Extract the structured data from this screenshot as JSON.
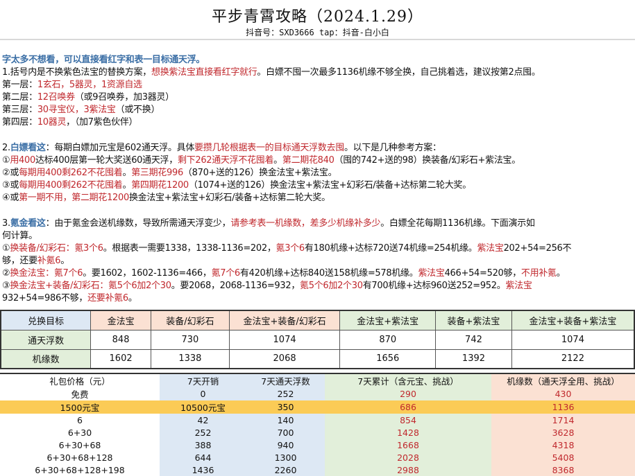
{
  "header": {
    "title": "平步青霄攻略（2024.1.29）",
    "subtitle": "抖音号：SXD3666   tap：抖音-白小白"
  },
  "colors": {
    "red": "#c0282d",
    "blue_heading": "#3a6ea5",
    "highlight": "#fbcb56"
  },
  "lines": [
    [
      {
        "t": "字太多不想看，可以直接看红字和表一目标通天浮。",
        "c": "b"
      }
    ],
    [
      {
        "t": "1.括号内是不换紫色法宝的替换方案，",
        "c": "k"
      },
      {
        "t": "想换紫法宝直接看红字就行",
        "c": "r"
      },
      {
        "t": "。白嫖不囤一次最多1136机缘不够全换，自己挑着选，建议按第2点囤。",
        "c": "k"
      }
    ],
    [
      {
        "t": "第一层：",
        "c": "k"
      },
      {
        "t": "1玄石，5器灵，1资源自选",
        "c": "r"
      }
    ],
    [
      {
        "t": "第二层：",
        "c": "k"
      },
      {
        "t": "12召唤券",
        "c": "r"
      },
      {
        "t": "（或9召唤券，加3器灵）",
        "c": "k"
      }
    ],
    [
      {
        "t": "第三层：",
        "c": "k"
      },
      {
        "t": "30寻宝仪，3紫法宝",
        "c": "r"
      },
      {
        "t": "（或不换）",
        "c": "k"
      }
    ],
    [
      {
        "t": "第四层：",
        "c": "k"
      },
      {
        "t": "10器灵",
        "c": "r"
      },
      {
        "t": "，（加7紫色伙伴）",
        "c": "k"
      }
    ],
    [],
    [
      {
        "t": "2.",
        "c": "k"
      },
      {
        "t": "白嫖看这",
        "c": "b"
      },
      {
        "t": "：每期白嫖加元宝是602通天浮。具体",
        "c": "k"
      },
      {
        "t": "要攒几轮根据表一的目标通天浮数去囤",
        "c": "r"
      },
      {
        "t": "。以下是几种参考方案：",
        "c": "k"
      }
    ],
    [
      {
        "t": "①",
        "c": "k"
      },
      {
        "t": "用400",
        "c": "r"
      },
      {
        "t": "达标400层第一轮大奖送60通天浮，",
        "c": "k"
      },
      {
        "t": "剩下262通天浮不花囤着",
        "c": "r"
      },
      {
        "t": "。",
        "c": "k"
      },
      {
        "t": "第二期花840",
        "c": "r"
      },
      {
        "t": "（囤的742+送的98）换装备/幻彩石+紫法宝。",
        "c": "k"
      }
    ],
    [
      {
        "t": "②或",
        "c": "k"
      },
      {
        "t": "每期用400剩262不花囤着",
        "c": "r"
      },
      {
        "t": "。",
        "c": "k"
      },
      {
        "t": "第三期花996",
        "c": "r"
      },
      {
        "t": "（870+送的126）换金法宝+紫法宝。",
        "c": "k"
      }
    ],
    [
      {
        "t": "③或",
        "c": "k"
      },
      {
        "t": "每期用400剩262不花囤着",
        "c": "r"
      },
      {
        "t": "。",
        "c": "k"
      },
      {
        "t": "第四期花1200",
        "c": "r"
      },
      {
        "t": "（1074+送的126）换金法宝+紫法宝+幻彩石/装备+达标第二轮大奖。",
        "c": "k"
      }
    ],
    [
      {
        "t": "④或",
        "c": "k"
      },
      {
        "t": "第一期不用，第二期花1200",
        "c": "r"
      },
      {
        "t": "换金法宝+紫法宝+幻彩石/装备+达标第二轮大奖。",
        "c": "k"
      }
    ],
    [],
    [
      {
        "t": "3.",
        "c": "k"
      },
      {
        "t": "氪金看这",
        "c": "b"
      },
      {
        "t": "：由于氪金会送机缘数，导致所需通天浮变少，",
        "c": "k"
      },
      {
        "t": "请参考表一机缘数，差多少机缘补多少",
        "c": "r"
      },
      {
        "t": "。白嫖全花每期1136机缘。下面演示如",
        "c": "k"
      }
    ],
    [
      {
        "t": "何计算。",
        "c": "k"
      }
    ],
    [
      {
        "t": "①",
        "c": "k"
      },
      {
        "t": "换装备/幻彩石：氪3个6",
        "c": "r"
      },
      {
        "t": "。根据表一需要1338，1338-1136=202，",
        "c": "k"
      },
      {
        "t": "氪3个6",
        "c": "r"
      },
      {
        "t": "有180机缘+达标720送74机缘=254机缘。",
        "c": "k"
      },
      {
        "t": "紫法宝",
        "c": "r"
      },
      {
        "t": "202+54=256不",
        "c": "k"
      }
    ],
    [
      {
        "t": "够，还要",
        "c": "k"
      },
      {
        "t": "补氪6",
        "c": "r"
      },
      {
        "t": "。",
        "c": "k"
      }
    ],
    [
      {
        "t": "②",
        "c": "k"
      },
      {
        "t": "换金法宝：氪7个6",
        "c": "r"
      },
      {
        "t": "。要1602，1602-1136=466，",
        "c": "k"
      },
      {
        "t": "氪7个6",
        "c": "r"
      },
      {
        "t": "有420机缘+达标840送158机缘=578机缘。",
        "c": "k"
      },
      {
        "t": "紫法宝",
        "c": "r"
      },
      {
        "t": "466+54=520够，",
        "c": "k"
      },
      {
        "t": "不用补氪",
        "c": "r"
      },
      {
        "t": "。",
        "c": "k"
      }
    ],
    [
      {
        "t": "③",
        "c": "k"
      },
      {
        "t": "换金法宝+装备/幻彩石：氪5个6加2个30",
        "c": "r"
      },
      {
        "t": "。要2068，2068-1136=932，",
        "c": "k"
      },
      {
        "t": "氪5个6加2个30",
        "c": "r"
      },
      {
        "t": "有700机缘+达标960送252=952。",
        "c": "k"
      },
      {
        "t": "紫法宝",
        "c": "r"
      }
    ],
    [
      {
        "t": "932+54=986不够，",
        "c": "k"
      },
      {
        "t": "还要补氪6",
        "c": "r"
      },
      {
        "t": "。",
        "c": "k"
      }
    ]
  ],
  "table1": {
    "header": [
      "兑换目标",
      "金法宝",
      "装备/幻彩石",
      "金法宝+装备/幻彩石",
      "金法宝+紫法宝",
      "装备+紫法宝",
      "金法宝+装备+紫法宝"
    ],
    "rows": [
      [
        "通天浮数",
        "848",
        "730",
        "1074",
        "870",
        "742",
        "1074"
      ],
      [
        "机缘数",
        "1602",
        "1338",
        "2068",
        "1656",
        "1392",
        "2122"
      ]
    ]
  },
  "table2": {
    "header": [
      "礼包价格（元）",
      "7天开销",
      "7天通天浮数",
      "7天累计（含元宝、挑战）",
      "机缘数（通天浮全用、挑战）"
    ],
    "rows": [
      [
        "免费",
        "0",
        "252",
        "290",
        "430"
      ],
      [
        "1500元宝",
        "10500元宝",
        "350",
        "686",
        "1136"
      ],
      [
        "6",
        "42",
        "140",
        "854",
        "1714"
      ],
      [
        "6+30",
        "252",
        "700",
        "1428",
        "3628"
      ],
      [
        "6+30+68",
        "388",
        "940",
        "1668",
        "4318"
      ],
      [
        "6+30+68+128",
        "644",
        "1300",
        "2028",
        "5408"
      ],
      [
        "6+30+68+128+198",
        "1436",
        "2260",
        "2988",
        "8368"
      ]
    ],
    "highlighted_row": 1
  }
}
